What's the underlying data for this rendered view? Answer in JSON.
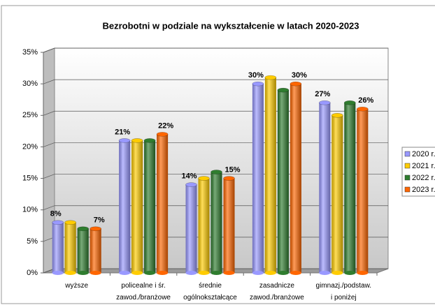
{
  "chart_data": {
    "type": "bar3d",
    "title": "Bezrobotni w podziale na wykształcenie w latach 2020-2023",
    "categories": [
      [
        "wyższe"
      ],
      [
        "policealne i śr.",
        "zawod./branżowe"
      ],
      [
        "średnie",
        "ogólnokształcące"
      ],
      [
        "zasadnicze",
        "zawod./branżowe"
      ],
      [
        "gimnazj./podstaw.",
        "i poniżej"
      ]
    ],
    "series": [
      {
        "name": "2020 r.",
        "color": "#9999ff",
        "values": [
          8,
          21,
          14,
          30,
          27
        ],
        "value_labels": [
          "8%",
          "21%",
          "14%",
          "30%",
          "27%"
        ]
      },
      {
        "name": "2021 r.",
        "color": "#ffcc00",
        "values": [
          8,
          21,
          15,
          31,
          25
        ]
      },
      {
        "name": "2022 r.",
        "color": "#2f7d2f",
        "values": [
          7,
          21,
          16,
          29,
          27
        ]
      },
      {
        "name": "2023 r.",
        "color": "#ff6600",
        "values": [
          7,
          22,
          15,
          30,
          26
        ],
        "value_labels": [
          "7%",
          "22%",
          "15%",
          "30%",
          "26%"
        ]
      }
    ],
    "ylim": [
      0,
      35
    ],
    "yticks": [
      {
        "value": 0,
        "label": "0%"
      },
      {
        "value": 5,
        "label": "5%"
      },
      {
        "value": 10,
        "label": "10%"
      },
      {
        "value": 15,
        "label": "15%"
      },
      {
        "value": 20,
        "label": "20%"
      },
      {
        "value": 25,
        "label": "25%"
      },
      {
        "value": 30,
        "label": "30%"
      },
      {
        "value": 35,
        "label": "35%"
      }
    ],
    "grid": true,
    "legend": "right"
  }
}
